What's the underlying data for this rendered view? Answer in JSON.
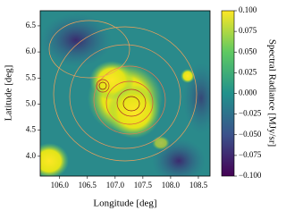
{
  "chart_data": {
    "type": "heatmap",
    "xlabel": "Longitude [deg]",
    "ylabel": "Latitude [deg]",
    "xlim": [
      105.65,
      108.71
    ],
    "ylim": [
      3.62,
      6.79
    ],
    "xticks": [
      {
        "value": 106,
        "label": "106.0"
      },
      106.5,
      {
        "value": 107,
        "label": "107.0"
      },
      107.5,
      {
        "value": 108,
        "label": "108.0"
      },
      108.5
    ],
    "yticks": [
      {
        "value": 4,
        "label": "4.0"
      },
      4.5,
      {
        "value": 5,
        "label": "5.0"
      },
      5.5,
      {
        "value": 6,
        "label": "6.0"
      },
      6.5
    ],
    "colorbar_label": "Spectral Radiance [MJy/sr]",
    "clim": [
      -0.1,
      0.1
    ],
    "cticks": [
      {
        "value": -0.1,
        "label": "−0.100"
      },
      {
        "value": -0.075,
        "label": "−0.075"
      },
      {
        "value": -0.05,
        "label": "−0.050"
      },
      {
        "value": -0.025,
        "label": "−0.025"
      },
      {
        "value": 0,
        "label": "0.000"
      },
      {
        "value": 0.025,
        "label": "0.025"
      },
      {
        "value": 0.05,
        "label": "0.050"
      },
      {
        "value": 0.075,
        "label": "0.075"
      },
      {
        "value": 0.1,
        "label": "0.100"
      }
    ]
  }
}
